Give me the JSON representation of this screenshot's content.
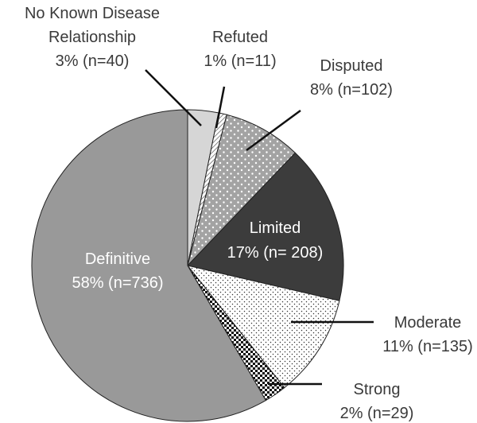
{
  "chart_data": {
    "type": "pie",
    "title": "",
    "start_angle_deg": 0,
    "direction": "clockwise",
    "slices": [
      {
        "label": "No Known Disease Relationship",
        "lines": [
          "No Known Disease",
          "Relationship",
          "3% (n=40)"
        ],
        "percent": 3,
        "n": 40,
        "color": "#d6d6d6",
        "pattern": "none"
      },
      {
        "label": "Refuted",
        "lines": [
          "Refuted",
          "1% (n=11)"
        ],
        "percent": 1,
        "n": 11,
        "color": "#ffffff",
        "pattern": "diagonal-hatch"
      },
      {
        "label": "Disputed",
        "lines": [
          "Disputed",
          "8% (n=102)"
        ],
        "percent": 8,
        "n": 102,
        "color": "#a3a3a3",
        "pattern": "white-dots"
      },
      {
        "label": "Limited",
        "lines": [
          "Limited",
          "17% (n= 208)"
        ],
        "percent": 17,
        "n": 208,
        "color": "#3c3c3c",
        "pattern": "none"
      },
      {
        "label": "Moderate",
        "lines": [
          "Moderate",
          "11% (n=135)"
        ],
        "percent": 11,
        "n": 135,
        "color": "#ffffff",
        "pattern": "black-dots"
      },
      {
        "label": "Strong",
        "lines": [
          "Strong",
          "2% (n=29)"
        ],
        "percent": 2,
        "n": 29,
        "color": "#111111",
        "pattern": "checker"
      },
      {
        "label": "Definitive",
        "lines": [
          "Definitive",
          "58% (n=736)"
        ],
        "percent": 58,
        "n": 736,
        "color": "#999999",
        "pattern": "none"
      }
    ]
  }
}
